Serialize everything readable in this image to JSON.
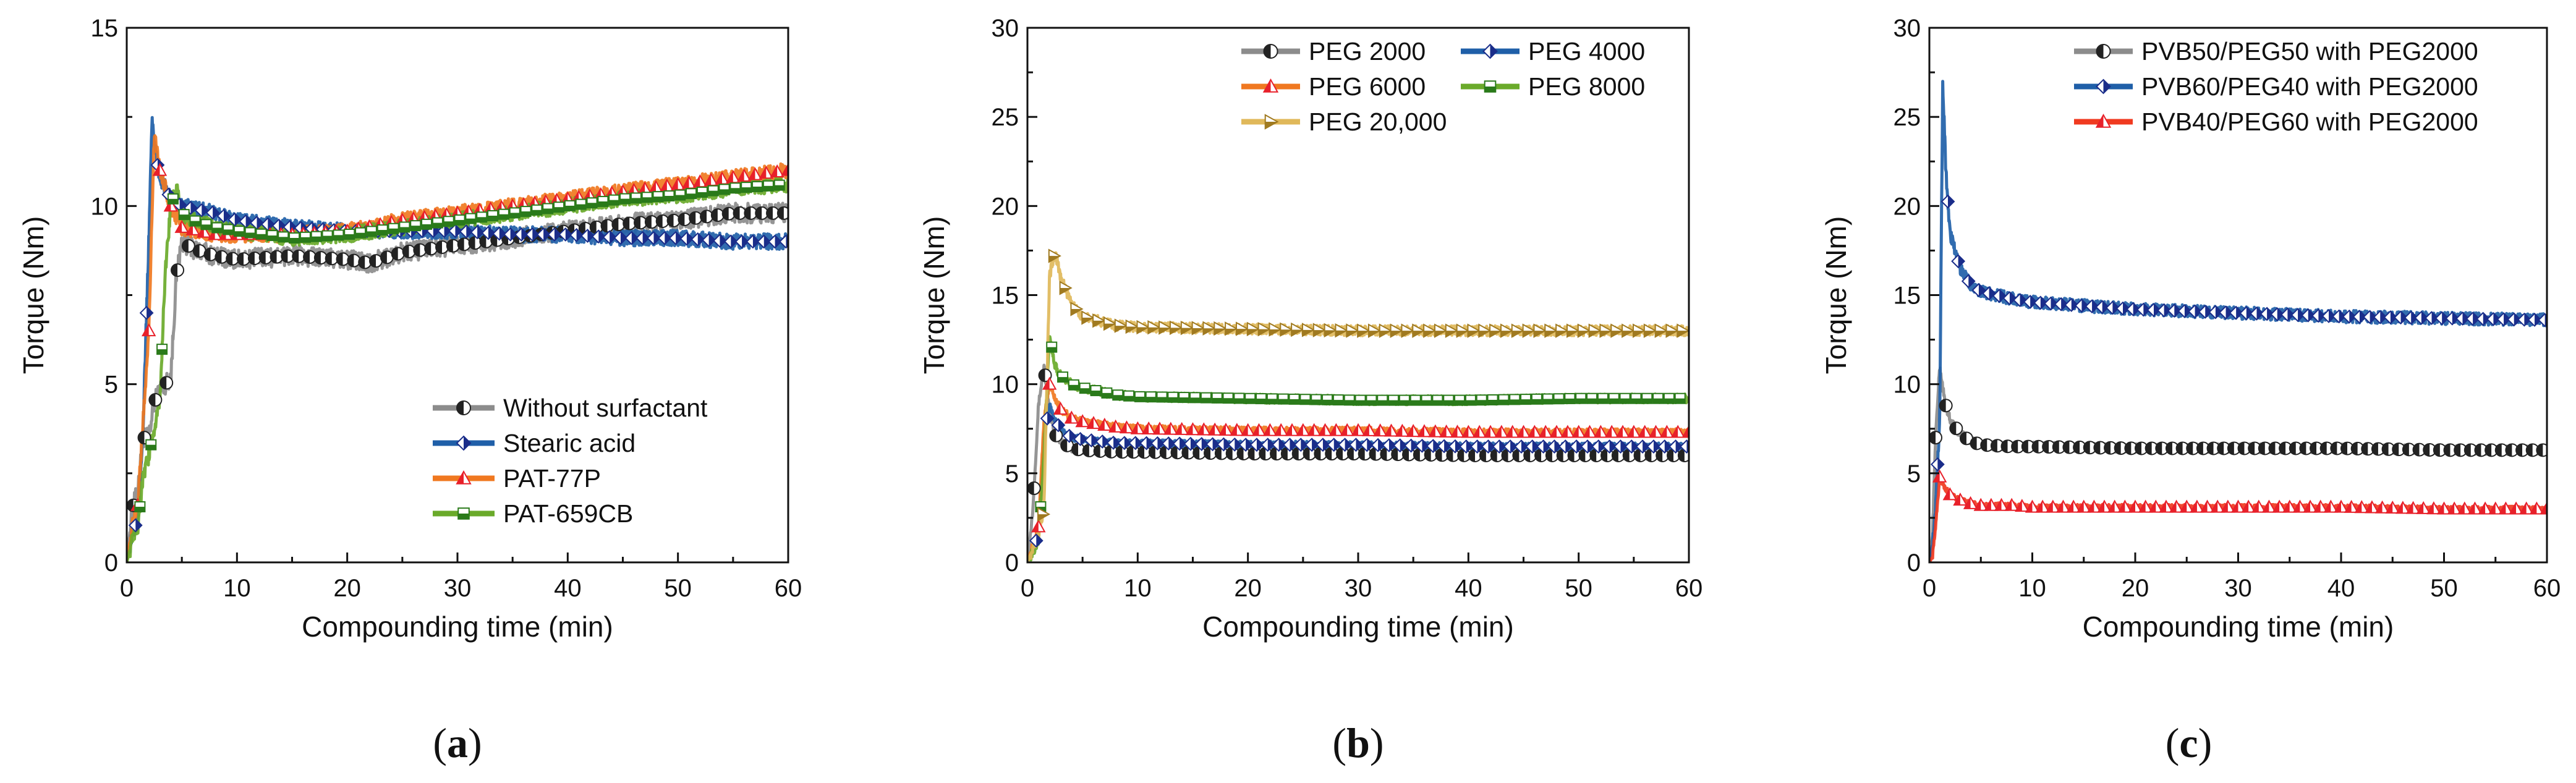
{
  "chart_data": [
    {
      "type": "line",
      "panel": "a",
      "caption_letter": "a",
      "xlabel": "Compounding time (min)",
      "ylabel": "Torque (Nm)",
      "xlim": [
        0,
        60
      ],
      "ylim": [
        0,
        15
      ],
      "xticks": [
        0,
        10,
        20,
        30,
        40,
        50,
        60
      ],
      "yticks": [
        0,
        5,
        10,
        15
      ],
      "legend_position": "bottom-right",
      "series": [
        {
          "name": "Without surfactant",
          "color": "#8c8c8c",
          "marker": "half-circle",
          "noise": 0.28,
          "x": [
            0,
            0.5,
            1,
            1.5,
            2,
            2.5,
            3,
            4,
            4.5,
            5,
            6,
            8,
            10,
            15,
            20,
            22,
            25,
            30,
            35,
            40,
            45,
            50,
            55,
            60
          ],
          "y": [
            0,
            1.5,
            2.0,
            3.5,
            3.5,
            4.5,
            4.8,
            5.2,
            8.0,
            9.0,
            8.8,
            8.6,
            8.5,
            8.6,
            8.5,
            8.4,
            8.7,
            8.9,
            9.1,
            9.3,
            9.5,
            9.6,
            9.8,
            9.8
          ]
        },
        {
          "name": "Stearic acid",
          "color": "#1f5fa8",
          "marker": "half-diamond",
          "noise": 0.22,
          "x": [
            0,
            0.5,
            1,
            1.5,
            2,
            2.3,
            2.6,
            3,
            4,
            5,
            8,
            10,
            15,
            20,
            25,
            30,
            35,
            40,
            45,
            50,
            55,
            60
          ],
          "y": [
            0,
            0.8,
            1.2,
            4.0,
            9.0,
            12.5,
            11.5,
            10.8,
            10.2,
            10.0,
            9.8,
            9.6,
            9.4,
            9.3,
            9.3,
            9.3,
            9.2,
            9.2,
            9.1,
            9.1,
            9.0,
            9.0
          ]
        },
        {
          "name": "PAT-77P",
          "color": "#f07820",
          "marker": "half-triangle",
          "noise": 0.22,
          "x": [
            0,
            0.5,
            1,
            1.5,
            2,
            2.5,
            3,
            4,
            5,
            8,
            10,
            15,
            20,
            25,
            30,
            35,
            40,
            45,
            50,
            55,
            60
          ],
          "y": [
            0,
            1.0,
            1.6,
            4.0,
            6.5,
            12.0,
            11.0,
            10.0,
            9.4,
            9.2,
            9.2,
            9.2,
            9.3,
            9.6,
            9.8,
            10.0,
            10.2,
            10.4,
            10.6,
            10.8,
            11.0
          ]
        },
        {
          "name": "PAT-659CB",
          "color": "#6aaa2a",
          "marker": "half-square",
          "noise": 0.22,
          "x": [
            0,
            0.5,
            1,
            1.5,
            2,
            3,
            3.5,
            4,
            4.5,
            5,
            6,
            8,
            10,
            15,
            20,
            25,
            30,
            35,
            40,
            45,
            50,
            55,
            60
          ],
          "y": [
            0,
            0.6,
            1.0,
            2.4,
            3.0,
            4.5,
            8.2,
            10.0,
            10.5,
            9.8,
            9.6,
            9.4,
            9.3,
            9.1,
            9.2,
            9.4,
            9.6,
            9.8,
            10.0,
            10.2,
            10.3,
            10.5,
            10.6
          ]
        }
      ]
    },
    {
      "type": "line",
      "panel": "b",
      "caption_letter": "b",
      "xlabel": "Compounding time (min)",
      "ylabel": "Torque (Nm)",
      "xlim": [
        0,
        60
      ],
      "ylim": [
        0,
        30
      ],
      "xticks": [
        0,
        10,
        20,
        30,
        40,
        50,
        60
      ],
      "yticks": [
        0,
        5,
        10,
        15,
        20,
        25,
        30
      ],
      "legend_position": "top-right",
      "series": [
        {
          "name": "PEG 2000",
          "color": "#8c8c8c",
          "marker": "half-circle",
          "noise": 0.2,
          "x": [
            0,
            0.5,
            1,
            1.5,
            2,
            2.5,
            3,
            4,
            5,
            8,
            10,
            20,
            30,
            40,
            50,
            60
          ],
          "y": [
            0,
            3.0,
            8.8,
            11.0,
            8.5,
            7.2,
            6.8,
            6.4,
            6.3,
            6.2,
            6.2,
            6.1,
            6.1,
            6.0,
            6.0,
            6.0
          ]
        },
        {
          "name": "PEG 4000",
          "color": "#1f5fa8",
          "marker": "half-diamond",
          "noise": 0.2,
          "x": [
            0,
            0.5,
            1,
            1.5,
            2,
            2.5,
            3,
            4,
            5,
            8,
            10,
            20,
            30,
            40,
            50,
            60
          ],
          "y": [
            0,
            0.8,
            1.5,
            7.0,
            8.8,
            8.0,
            7.5,
            7.0,
            6.9,
            6.7,
            6.7,
            6.6,
            6.6,
            6.5,
            6.5,
            6.5
          ]
        },
        {
          "name": "PEG 6000",
          "color": "#f07820",
          "marker": "half-triangle",
          "noise": 0.2,
          "x": [
            0,
            0.5,
            1,
            1.5,
            2,
            2.5,
            3,
            4,
            5,
            8,
            10,
            20,
            30,
            40,
            50,
            60
          ],
          "y": [
            0,
            1.0,
            2.0,
            8.0,
            10.0,
            9.2,
            8.6,
            8.1,
            7.9,
            7.6,
            7.5,
            7.4,
            7.4,
            7.3,
            7.3,
            7.3
          ]
        },
        {
          "name": "PEG 8000",
          "color": "#6aaa2a",
          "marker": "half-square",
          "noise": 0.25,
          "x": [
            0,
            0.5,
            1,
            1.5,
            2,
            2.5,
            3,
            4,
            5,
            8,
            10,
            20,
            30,
            40,
            50,
            60
          ],
          "y": [
            0,
            0.6,
            1.2,
            6.0,
            12.8,
            11.0,
            10.5,
            10.0,
            9.8,
            9.4,
            9.3,
            9.2,
            9.1,
            9.1,
            9.2,
            9.2
          ]
        },
        {
          "name": "PEG 20,000",
          "color": "#e0b85a",
          "marker": "half-triangle-right",
          "noise": 0.28,
          "x": [
            0,
            0.5,
            1,
            1.5,
            2,
            2.5,
            3,
            4,
            5,
            8,
            10,
            20,
            30,
            40,
            50,
            60
          ],
          "y": [
            0,
            0.8,
            1.5,
            3.0,
            16.0,
            17.5,
            16.0,
            14.5,
            13.8,
            13.3,
            13.2,
            13.1,
            13.0,
            13.0,
            13.0,
            13.0
          ]
        }
      ]
    },
    {
      "type": "line",
      "panel": "c",
      "caption_letter": "c",
      "xlabel": "Compounding time (min)",
      "ylabel": "Torque (Nm)",
      "xlim": [
        0,
        60
      ],
      "ylim": [
        0,
        30
      ],
      "xticks": [
        0,
        10,
        20,
        30,
        40,
        50,
        60
      ],
      "yticks": [
        0,
        5,
        10,
        15,
        20,
        25,
        30
      ],
      "legend_position": "top-right",
      "series": [
        {
          "name": "PVB50/PEG50 with PEG2000",
          "color": "#8c8c8c",
          "marker": "half-circle",
          "noise": 0.25,
          "x": [
            0,
            0.3,
            0.6,
            1,
            1.5,
            2,
            3,
            4,
            5,
            8,
            10,
            20,
            30,
            40,
            50,
            60
          ],
          "y": [
            0,
            1.5,
            7.0,
            11.0,
            9.0,
            8.0,
            7.2,
            6.8,
            6.6,
            6.5,
            6.5,
            6.4,
            6.4,
            6.4,
            6.3,
            6.3
          ]
        },
        {
          "name": "PVB60/PEG40 with PEG2000",
          "color": "#1f5fa8",
          "marker": "half-diamond",
          "noise": 0.35,
          "x": [
            0,
            0.3,
            0.6,
            1,
            1.3,
            1.6,
            2,
            3,
            4,
            5,
            8,
            10,
            20,
            30,
            40,
            50,
            60
          ],
          "y": [
            0,
            1.0,
            3.0,
            8.0,
            27.0,
            22.0,
            18.5,
            16.5,
            15.6,
            15.2,
            14.8,
            14.6,
            14.2,
            14.0,
            13.8,
            13.7,
            13.6
          ]
        },
        {
          "name": "PVB40/PEG60 with PEG2000",
          "color": "#f03a20",
          "marker": "half-triangle",
          "noise": 0.15,
          "x": [
            0,
            0.3,
            0.6,
            1,
            1.5,
            2,
            3,
            4,
            5,
            8,
            10,
            20,
            30,
            40,
            50,
            60
          ],
          "y": [
            0,
            0.3,
            2.0,
            4.8,
            4.2,
            3.8,
            3.5,
            3.3,
            3.2,
            3.2,
            3.1,
            3.1,
            3.1,
            3.1,
            3.0,
            3.0
          ]
        }
      ]
    }
  ]
}
